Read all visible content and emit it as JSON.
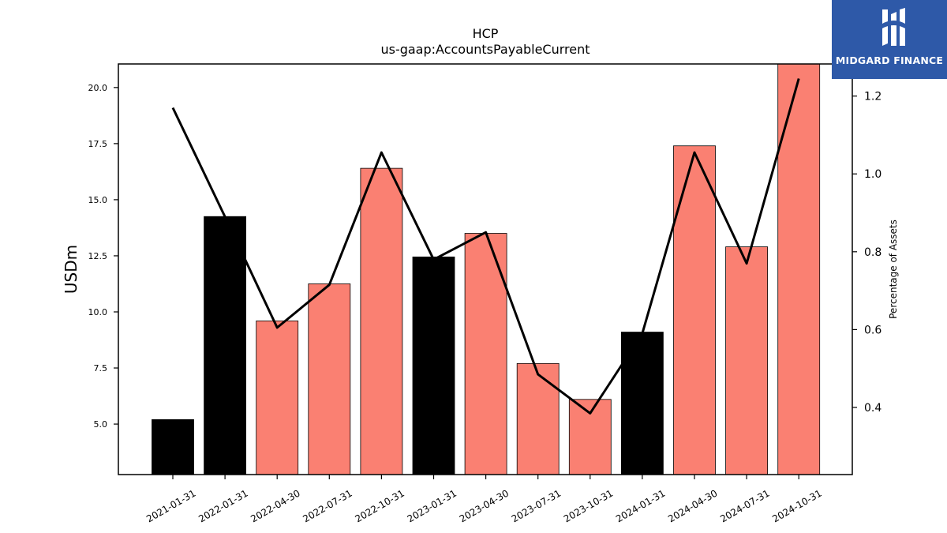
{
  "brand": {
    "name": "MIDGARD FINANCE",
    "bg_color": "#2e59a8"
  },
  "chart_data": {
    "type": "bar",
    "title": "HCP",
    "subtitle": "us-gaap:AccountsPayableCurrent",
    "ylabel": "USDm",
    "y2label": "Percentage of Assets",
    "categories": [
      "2021-01-31",
      "2022-01-31",
      "2022-04-30",
      "2022-07-31",
      "2022-10-31",
      "2023-01-31",
      "2023-04-30",
      "2023-07-31",
      "2023-10-31",
      "2024-01-31",
      "2024-04-30",
      "2024-07-31",
      "2024-10-31"
    ],
    "series": [
      {
        "type": "bar",
        "axis": "left",
        "values": [
          5.2,
          14.25,
          9.6,
          11.25,
          16.4,
          12.45,
          13.5,
          7.7,
          6.1,
          9.1,
          17.4,
          12.9,
          21.1
        ],
        "colors": [
          "#000000",
          "#000000",
          "#fa8072",
          "#fa8072",
          "#fa8072",
          "#000000",
          "#fa8072",
          "#fa8072",
          "#fa8072",
          "#000000",
          "#fa8072",
          "#fa8072",
          "#fa8072"
        ]
      },
      {
        "type": "line",
        "axis": "right",
        "color": "#000000",
        "values": [
          1.17,
          0.89,
          0.605,
          0.715,
          1.055,
          0.78,
          0.85,
          0.485,
          0.385,
          0.59,
          1.055,
          0.77,
          1.245
        ]
      }
    ],
    "ylim": [
      2.75,
      21.05
    ],
    "y2lim": [
      0.2275,
      1.2825
    ],
    "yticks": [
      "5.0",
      "7.5",
      "10.0",
      "12.5",
      "15.0",
      "17.5",
      "20.0"
    ],
    "y2ticks": [
      "0.4",
      "0.6",
      "0.8",
      "1.0",
      "1.2"
    ],
    "grid": false,
    "legend": "none"
  }
}
